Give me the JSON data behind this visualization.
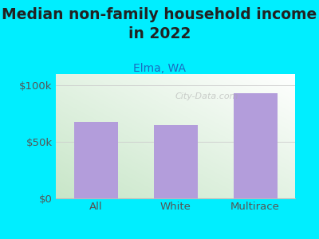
{
  "title": "Median non-family household income\nin 2022",
  "subtitle": "Elma, WA",
  "categories": [
    "All",
    "White",
    "Multirace"
  ],
  "values": [
    68000,
    65000,
    93000
  ],
  "bar_color": "#b39ddb",
  "background_outer": "#00eeff",
  "background_inner_left": "#d6ecd2",
  "background_inner_right": "#f8fff8",
  "background_inner_top": "#f0fff0",
  "background_inner_bottom": "#e8f5e9",
  "yticks": [
    0,
    50000,
    100000
  ],
  "ytick_labels": [
    "$0",
    "$50k",
    "$100k"
  ],
  "ylim": [
    0,
    110000
  ],
  "title_fontsize": 13.5,
  "subtitle_fontsize": 10,
  "tick_fontsize": 9.5,
  "title_color": "#222222",
  "subtitle_color": "#1a6bbf",
  "tick_color": "#555555",
  "watermark": "City-Data.com",
  "grid_color": "#cccccc"
}
